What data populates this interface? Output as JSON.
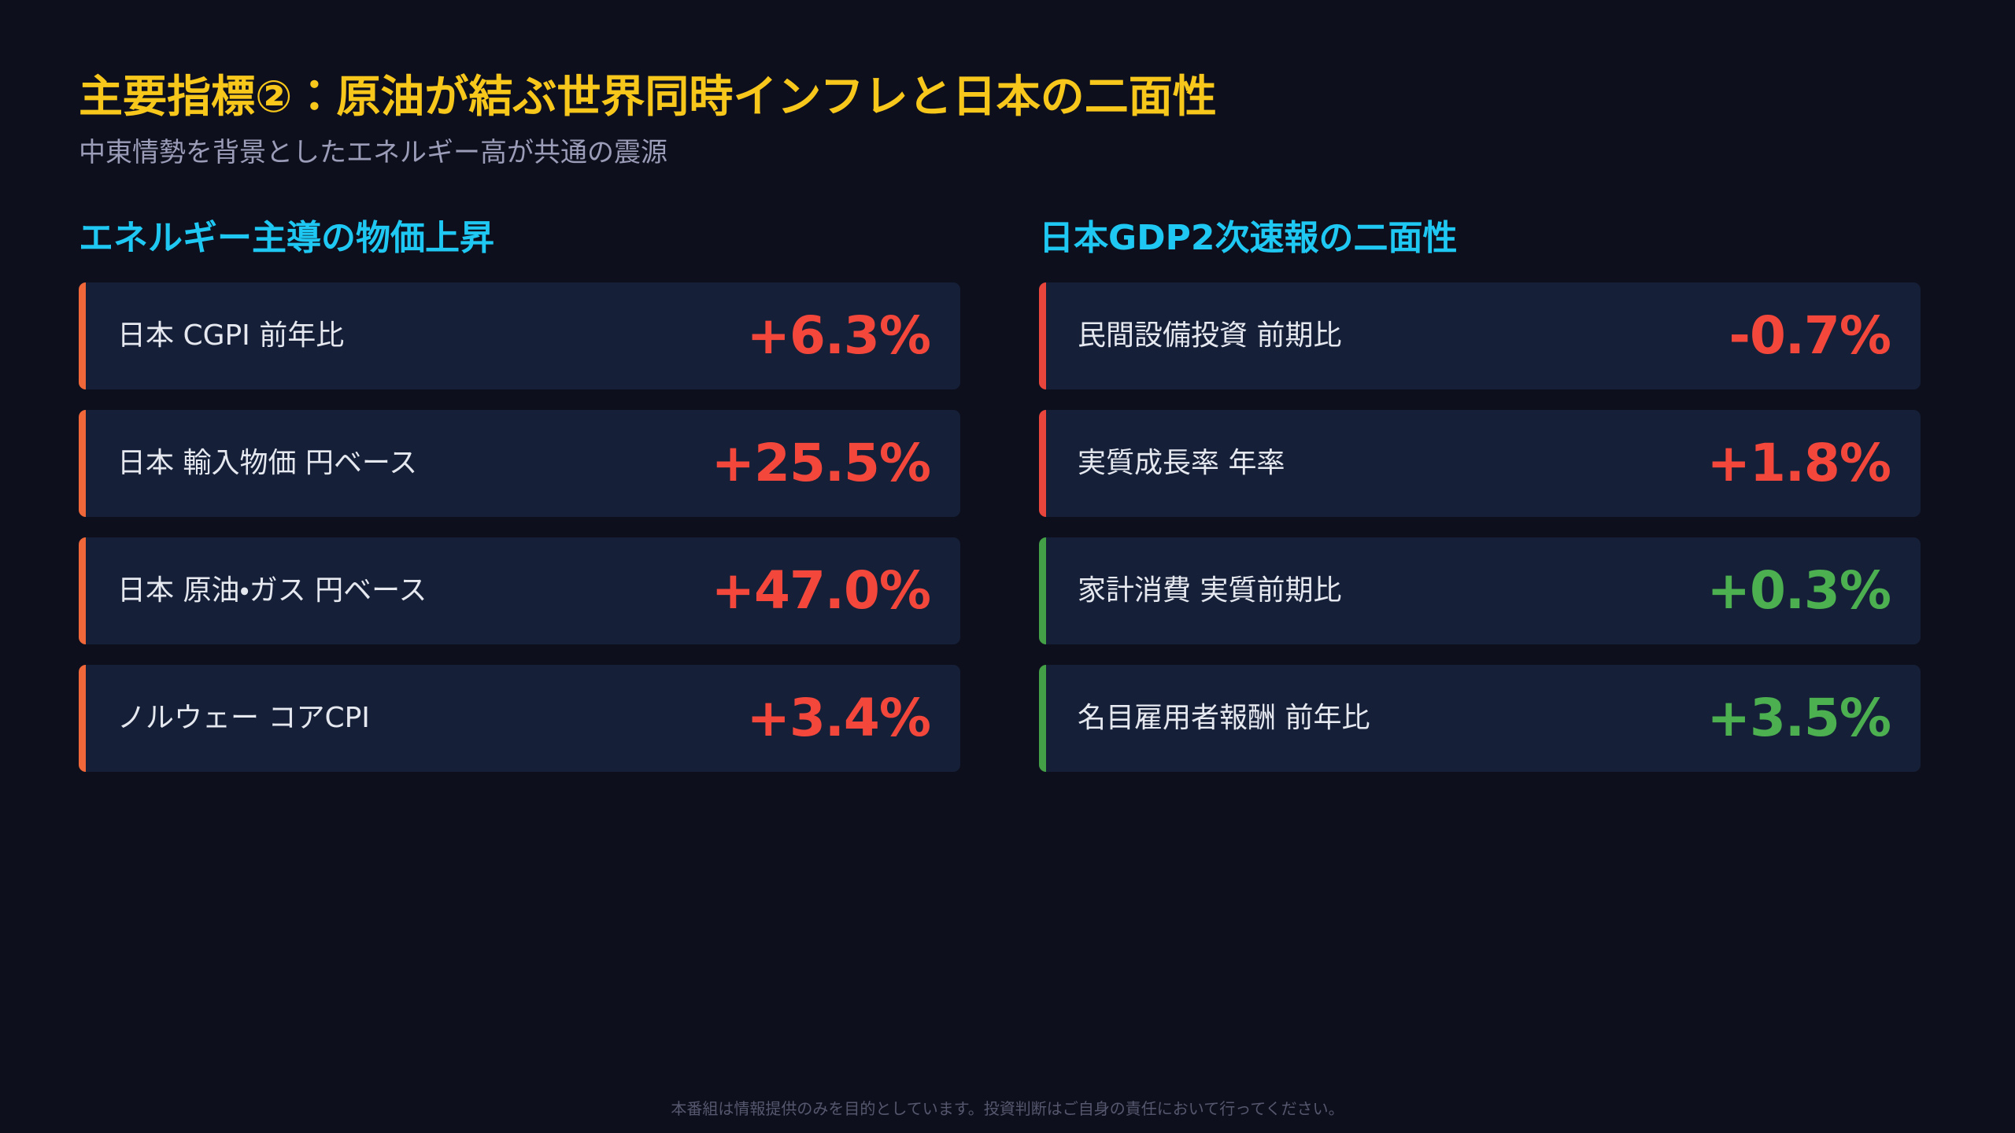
{
  "header": {
    "title": "主要指標②：原油が結ぶ世界同時インフレと日本の二面性",
    "subtitle": "中東情勢を背景としたエネルギー高が共通の震源"
  },
  "columns": [
    {
      "heading": "エネルギー主導の物価上昇",
      "items": [
        {
          "label": "日本 CGPI 前年比",
          "value": "+6.3%",
          "accent": "#f0683a",
          "value_color": "#f4473b"
        },
        {
          "label": "日本 輸入物価 円ベース",
          "value": "+25.5%",
          "accent": "#f0683a",
          "value_color": "#f4473b"
        },
        {
          "label": "日本 原油・ガス 円ベース",
          "value": "+47.0%",
          "accent": "#f0683a",
          "value_color": "#f4473b"
        },
        {
          "label": "ノルウェー コアCPI",
          "value": "+3.4%",
          "accent": "#f0683a",
          "value_color": "#f4473b"
        }
      ]
    },
    {
      "heading": "日本GDP2次速報の二面性",
      "items": [
        {
          "label": "民間設備投資 前期比",
          "value": "-0.7%",
          "accent": "#e8453c",
          "value_color": "#f4473b"
        },
        {
          "label": "実質成長率 年率",
          "value": "+1.8%",
          "accent": "#e8453c",
          "value_color": "#f4473b"
        },
        {
          "label": "家計消費 実質前期比",
          "value": "+0.3%",
          "accent": "#43a047",
          "value_color": "#4caf50"
        },
        {
          "label": "名目雇用者報酬 前年比",
          "value": "+3.5%",
          "accent": "#43a047",
          "value_color": "#4caf50"
        }
      ]
    }
  ],
  "footer": "本番組は情報提供のみを目的としています。投資判断はご自身の責任において行ってください。"
}
